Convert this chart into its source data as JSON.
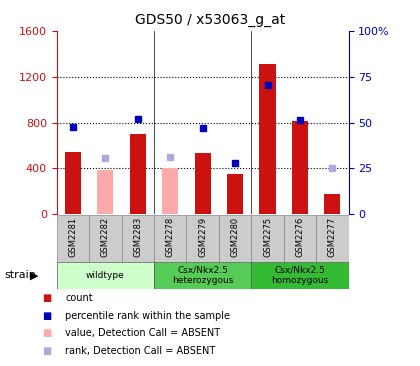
{
  "title": "GDS50 / x53063_g_at",
  "samples": [
    "GSM2281",
    "GSM2282",
    "GSM2283",
    "GSM2278",
    "GSM2279",
    "GSM2280",
    "GSM2275",
    "GSM2276",
    "GSM2277"
  ],
  "groups": [
    {
      "label": "wildtype",
      "indices": [
        0,
        1,
        2
      ],
      "color": "#ccffcc"
    },
    {
      "label": "Csx/Nkx2.5\nheterozygous",
      "indices": [
        3,
        4,
        5
      ],
      "color": "#55cc55"
    },
    {
      "label": "Csx/Nkx2.5\nhomozygous",
      "indices": [
        6,
        7,
        8
      ],
      "color": "#33bb33"
    }
  ],
  "count_values": [
    540,
    null,
    700,
    null,
    530,
    350,
    1310,
    810,
    175
  ],
  "count_absent_values": [
    null,
    390,
    null,
    400,
    null,
    null,
    null,
    null,
    null
  ],
  "rank_values": [
    760,
    null,
    830,
    null,
    750,
    450,
    1130,
    820,
    null
  ],
  "rank_absent_values": [
    null,
    490,
    null,
    500,
    null,
    null,
    null,
    null,
    400
  ],
  "ylim_left": [
    0,
    1600
  ],
  "ylim_right": [
    0,
    100
  ],
  "yticks_left": [
    0,
    400,
    800,
    1200,
    1600
  ],
  "yticks_right": [
    0,
    25,
    50,
    75,
    100
  ],
  "bar_color_present": "#cc1111",
  "bar_color_absent": "#ffaaaa",
  "dot_color_present": "#0000bb",
  "dot_color_absent": "#aaaadd",
  "plot_bg": "#ffffff",
  "right_ax_color": "#0000bb"
}
